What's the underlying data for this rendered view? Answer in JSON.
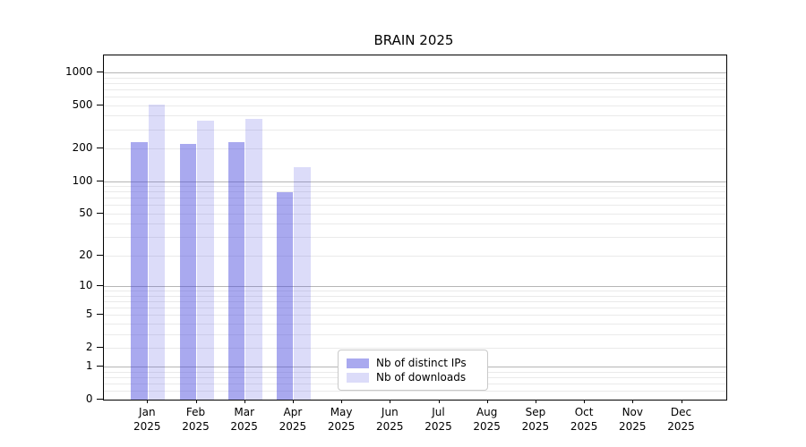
{
  "chart_data": {
    "type": "bar",
    "title": "BRAIN 2025",
    "categories": [
      "Jan",
      "Feb",
      "Mar",
      "Apr",
      "May",
      "Jun",
      "Jul",
      "Aug",
      "Sep",
      "Oct",
      "Nov",
      "Dec"
    ],
    "x_tick_labels": [
      [
        "Jan",
        "2025"
      ],
      [
        "Feb",
        "2025"
      ],
      [
        "Mar",
        "2025"
      ],
      [
        "Apr",
        "2025"
      ],
      [
        "May",
        "2025"
      ],
      [
        "Jun",
        "2025"
      ],
      [
        "Jul",
        "2025"
      ],
      [
        "Aug",
        "2025"
      ],
      [
        "Sep",
        "2025"
      ],
      [
        "Oct",
        "2025"
      ],
      [
        "Nov",
        "2025"
      ],
      [
        "Dec",
        "2025"
      ]
    ],
    "series": [
      {
        "name": "Nb of distinct IPs",
        "color": "rgba(68,68,221,0.46)",
        "color_hex_on_white": "#a9a9ef",
        "values": [
          228,
          222,
          228,
          79,
          0,
          0,
          0,
          0,
          0,
          0,
          0,
          0
        ]
      },
      {
        "name": "Nb of downloads",
        "color": "rgba(68,68,221,0.19)",
        "color_hex_on_white": "#dcdcf9",
        "values": [
          510,
          360,
          375,
          134,
          0,
          0,
          0,
          0,
          0,
          0,
          0,
          0
        ]
      }
    ],
    "y_axis": {
      "scale": "log1p",
      "ticks": [
        1000,
        500,
        200,
        100,
        50,
        20,
        10,
        5,
        2,
        1,
        0
      ],
      "major_grid_values": [
        1000,
        100,
        10,
        1
      ],
      "minor_grid_values": [
        900,
        800,
        700,
        600,
        500,
        400,
        300,
        200,
        90,
        80,
        70,
        60,
        50,
        40,
        30,
        20,
        9,
        8,
        7,
        6,
        5,
        4,
        3,
        2,
        0.8,
        0.6,
        0.4,
        0.2
      ],
      "ylim": [
        0,
        1430
      ]
    },
    "xlabel": "",
    "ylabel": "",
    "legend": {
      "position": "lower center",
      "entries": [
        "Nb of distinct IPs",
        "Nb of downloads"
      ]
    },
    "grid": {
      "major_color": "#b5b5b5",
      "minor_color": "#eaeaea",
      "visible": true
    },
    "colors": {
      "background": "#ffffff",
      "axis": "#000000",
      "text": "#000000",
      "legend_border": "#c9c9c9"
    }
  }
}
